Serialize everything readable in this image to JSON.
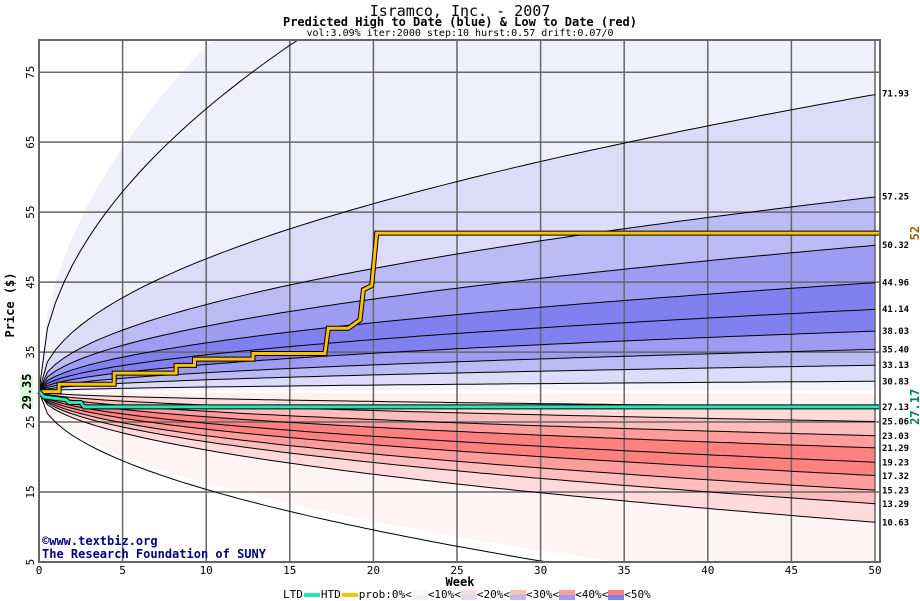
{
  "header": {
    "title": "Isramco, Inc. - 2007",
    "subtitle": "Predicted High to Date (blue) &  Low to Date (red)",
    "params": "vol:3.09% iter:2000 step:10 hurst:0.57 drift:0.07/0"
  },
  "watermark": {
    "line1": "©www.textbiz.org",
    "line2": "The Research Foundation of SUNY"
  },
  "legend": {
    "ltd": "LTD",
    "htd": "HTD",
    "prob": "prob:0%<",
    "b10": "<10%<",
    "b20": "<20%<",
    "b30": "<30%<",
    "b40": "<40%<",
    "b50": "<50%"
  },
  "colors": {
    "htd": "#ffc000",
    "ltd": "#20e8b8",
    "start_label_bg": "#d8f8d8",
    "htd_label": "#a06000",
    "ltd_label": "#008060"
  },
  "chart_data": {
    "type": "area",
    "title": "Isramco, Inc. - 2007",
    "xlabel": "Week",
    "ylabel": "Price ($)",
    "xlim": [
      0,
      50.3
    ],
    "ylim": [
      5,
      79.6
    ],
    "xticks": [
      0,
      5,
      10,
      15,
      20,
      25,
      30,
      35,
      40,
      45,
      50
    ],
    "yticks": [
      5,
      15,
      25,
      35,
      45,
      55,
      65,
      75
    ],
    "start_price": 29.35,
    "start_label": "29.35",
    "upper_quantiles_end": [
      "71.93",
      "57.25",
      "50.32",
      "44.96",
      "41.14",
      "38.03",
      "35.40",
      "33.13",
      "30.83"
    ],
    "lower_quantiles_end": [
      "27.13",
      "25.06",
      "23.03",
      "21.29",
      "19.23",
      "17.32",
      "15.23",
      "13.29",
      "10.63"
    ],
    "htd": {
      "label": "52",
      "points": [
        [
          0,
          29.35
        ],
        [
          1.2,
          29.35
        ],
        [
          1.2,
          30.4
        ],
        [
          4.5,
          30.4
        ],
        [
          4.5,
          32.0
        ],
        [
          8.2,
          32.0
        ],
        [
          8.2,
          33.1
        ],
        [
          9.3,
          33.1
        ],
        [
          9.3,
          34.0
        ],
        [
          12.8,
          34.0
        ],
        [
          12.8,
          34.8
        ],
        [
          17.1,
          34.8
        ],
        [
          17.3,
          38.4
        ],
        [
          18.5,
          38.4
        ],
        [
          19.2,
          39.6
        ],
        [
          19.4,
          43.9
        ],
        [
          19.9,
          44.5
        ],
        [
          20.2,
          52
        ],
        [
          50.3,
          52
        ]
      ]
    },
    "ltd": {
      "label": "27.17",
      "points": [
        [
          0,
          29.35
        ],
        [
          0.3,
          28.6
        ],
        [
          1.6,
          28.2
        ],
        [
          1.8,
          27.8
        ],
        [
          2.5,
          27.8
        ],
        [
          2.7,
          27.17
        ],
        [
          50.3,
          27.17
        ]
      ]
    }
  }
}
